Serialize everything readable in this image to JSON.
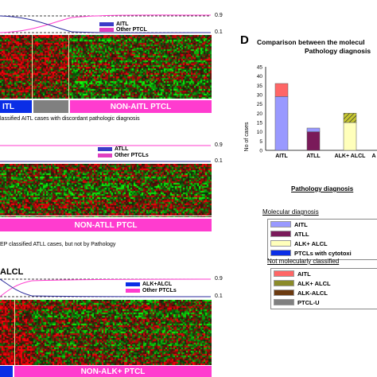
{
  "colors": {
    "heat_red": "#ff1a1a",
    "heat_green": "#1aff1a",
    "heat_dark": "#000000",
    "magenta": "#ff3ccf",
    "blue": "#0a2ee6",
    "grey": "#808080",
    "navy": "#2b2b9c"
  },
  "panel_a": {
    "legend": {
      "series": [
        {
          "label": "AITL",
          "color": "#3b3bc8"
        },
        {
          "label": "Other PTCL",
          "color": "#e040c0"
        }
      ]
    },
    "axis_top": "0.9",
    "axis_bottom": "0.1",
    "bar_left_label": "ITL",
    "bar_right_label": "NON-AITL PTCL",
    "caption": "lassified AITL cases with discordant pathologic diagnosis"
  },
  "panel_b": {
    "legend": {
      "series": [
        {
          "label": "ATLL",
          "color": "#3b3bc8"
        },
        {
          "label": "Other PTCLs",
          "color": "#e040c0"
        }
      ]
    },
    "axis_top": "0.9",
    "axis_bottom": "0.1",
    "bar_label": "NON-ATLL PTCL",
    "caption": "EP classified ATLL cases, but not by Pathology"
  },
  "panel_c": {
    "title": "ALCL",
    "legend": {
      "series": [
        {
          "label": "ALK+ALCL",
          "color": "#0a2ee6"
        },
        {
          "label": "Other PTCLs",
          "color": "#ff3ccf"
        }
      ]
    },
    "axis_top": "0.9",
    "axis_bottom": "0.1",
    "bar_label": "NON-ALK+ PTCL"
  },
  "panel_d": {
    "letter": "D",
    "title_line1": "Comparison between the molecul",
    "title_line2": "Pathology diagnosis",
    "ylabel": "No of cases",
    "xlabel": "Pathology diagnosis",
    "y_ticks": [
      "45",
      "40",
      "35",
      "30",
      "25",
      "20",
      "15",
      "10",
      "5",
      "0"
    ],
    "x_labels": [
      "AITL",
      "ATLL",
      "ALK+ ALCL",
      "A"
    ]
  },
  "chart_data": {
    "type": "bar",
    "title": "Comparison between the molecul Pathology diagnosis",
    "xlabel": "Pathology diagnosis",
    "ylabel": "No of cases",
    "ylim": [
      0,
      45
    ],
    "categories": [
      "AITL",
      "ATLL",
      "ALK+ ALCL"
    ],
    "stacks": [
      {
        "category": "AITL",
        "segments": [
          {
            "name": "AITL",
            "value": 29,
            "color": "#9999ff"
          },
          {
            "name": "AITL",
            "value": 7,
            "color": "#ff6666"
          }
        ]
      },
      {
        "category": "ATLL",
        "segments": [
          {
            "name": "ATLL",
            "value": 10,
            "color": "#7a1a5a"
          },
          {
            "name": "AITL",
            "value": 2,
            "color": "#9999ff"
          }
        ]
      },
      {
        "category": "ALK+ ALCL",
        "segments": [
          {
            "name": "ALK+ ALCL",
            "value": 15,
            "color": "#ffffbb"
          },
          {
            "name": "ALK+ ALCL",
            "value": 5,
            "color": "#8b8b2a",
            "hatched": true
          }
        ]
      }
    ]
  },
  "legend_molecular": {
    "title": "Molecular diagnosis",
    "items": [
      {
        "label": "AITL",
        "color": "#9999ff"
      },
      {
        "label": "ATLL",
        "color": "#7a1a5a"
      },
      {
        "label": "ALK+ ALCL",
        "color": "#ffffbb"
      },
      {
        "label": "PTCLs with cytotoxi",
        "color": "#0a2ee6"
      }
    ]
  },
  "legend_not_classified": {
    "title": "Not molecularly classified",
    "items": [
      {
        "label": "AITL",
        "color": "#ff6666"
      },
      {
        "label": "ALK+ ALCL",
        "color": "#8b8b2a"
      },
      {
        "label": "ALK-ALCL",
        "color": "#6b3a10"
      },
      {
        "label": "PTCL-U",
        "color": "#808080"
      }
    ]
  }
}
